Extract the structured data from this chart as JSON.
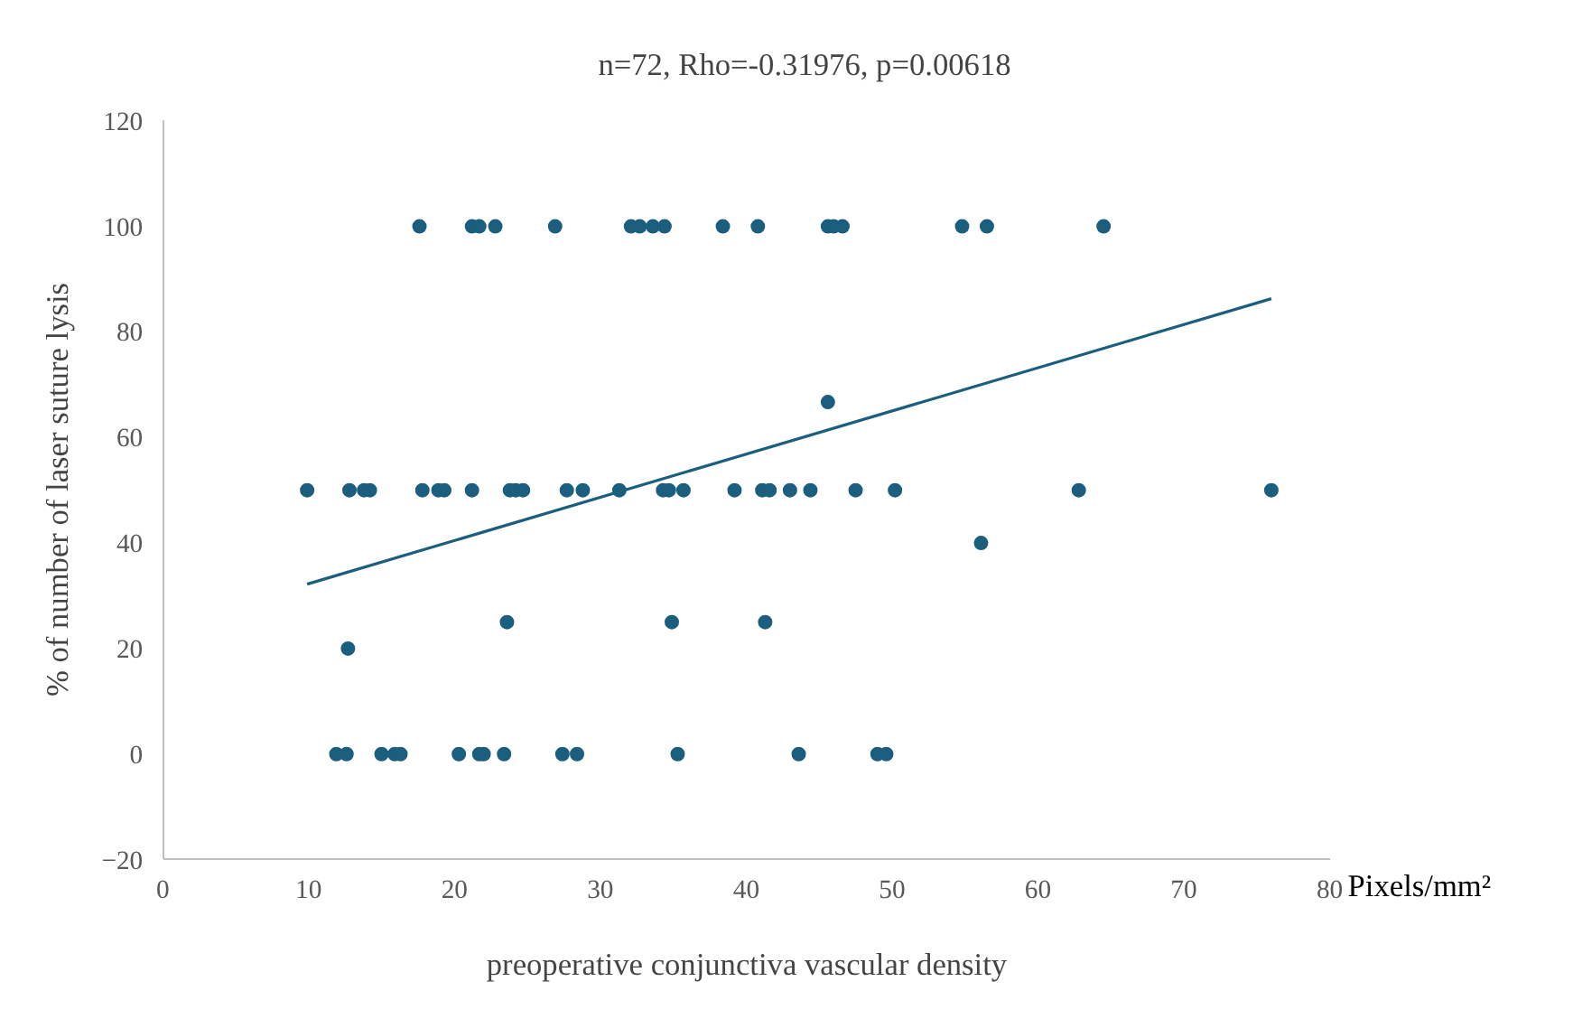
{
  "chart_data": {
    "type": "scatter",
    "title": "n=72, Rho=-0.31976, p=0.00618",
    "xlabel": "preoperative conjunctiva vascular density",
    "ylabel": "% of number of laser suture lysis",
    "annotations": [
      "Pixels/mm²"
    ],
    "xlim": [
      0,
      80
    ],
    "xticks": [
      0,
      10,
      20,
      30,
      40,
      50,
      60,
      70,
      80
    ],
    "ylim": [
      -20,
      120
    ],
    "yticks": [
      -20,
      0,
      20,
      40,
      60,
      80,
      100,
      120
    ],
    "grid": false,
    "series": [
      {
        "marker": "circle",
        "color": "#1b5e7e",
        "x": [
          17.6,
          21.2,
          21.7,
          22.8,
          26.9,
          32.1,
          32.7,
          33.6,
          34.4,
          38.4,
          40.8,
          45.6,
          46.0,
          46.6,
          54.8,
          56.5,
          64.5,
          9.9,
          12.8,
          13.8,
          14.2,
          17.8,
          18.9,
          19.3,
          21.2,
          23.8,
          24.2,
          24.7,
          27.7,
          28.8,
          31.3,
          34.3,
          34.7,
          35.7,
          39.2,
          41.1,
          41.6,
          43.0,
          44.4,
          47.5,
          50.2,
          62.8,
          76.0,
          45.6,
          56.1,
          23.6,
          34.9,
          41.3,
          12.7,
          11.9,
          12.6,
          15.0,
          15.9,
          16.3,
          20.3,
          21.7,
          22.0,
          23.4,
          27.4,
          28.4,
          35.3,
          43.6,
          49.0,
          49.6
        ],
        "values": [
          100,
          100,
          100,
          100,
          100,
          100,
          100,
          100,
          100,
          100,
          100,
          100,
          100,
          100,
          100,
          100,
          100,
          50,
          50,
          50,
          50,
          50,
          50,
          50,
          50,
          50,
          50,
          50,
          50,
          50,
          50,
          50,
          50,
          50,
          50,
          50,
          50,
          50,
          50,
          50,
          50,
          50,
          50,
          66.7,
          40,
          25,
          25,
          25,
          20,
          0,
          0,
          0,
          0,
          0,
          0,
          0,
          0,
          0,
          0,
          0,
          0,
          0,
          0,
          0
        ]
      },
      {
        "type": "line",
        "marker": "none",
        "color": "#1b5e7e",
        "x": [
          9.9,
          76.0
        ],
        "values": [
          32.2,
          86.3
        ]
      }
    ]
  }
}
